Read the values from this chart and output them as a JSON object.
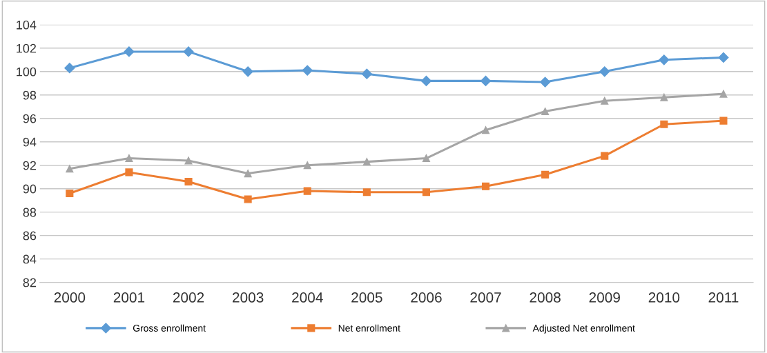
{
  "chart_data": {
    "type": "line",
    "categories": [
      "2000",
      "2001",
      "2002",
      "2003",
      "2004",
      "2005",
      "2006",
      "2007",
      "2008",
      "2009",
      "2010",
      "2011"
    ],
    "series": [
      {
        "name": "Gross enrollment",
        "color": "#5b9bd5",
        "marker": "diamond",
        "values": [
          100.3,
          101.7,
          101.7,
          100.0,
          100.1,
          99.8,
          99.2,
          99.2,
          99.1,
          100.0,
          101.0,
          101.2
        ]
      },
      {
        "name": "Net enrollment",
        "color": "#ed7d31",
        "marker": "square",
        "values": [
          89.6,
          91.4,
          90.6,
          89.1,
          89.8,
          89.7,
          89.7,
          90.2,
          91.2,
          92.8,
          95.5,
          95.8
        ]
      },
      {
        "name": "Adjusted Net enrollment",
        "color": "#a5a5a5",
        "marker": "triangle",
        "values": [
          91.7,
          92.6,
          92.4,
          91.3,
          92.0,
          92.3,
          92.6,
          95.0,
          96.6,
          97.5,
          97.8,
          98.1
        ]
      }
    ],
    "ylim": [
      82,
      104
    ],
    "yticks": [
      82,
      84,
      86,
      88,
      90,
      92,
      94,
      96,
      98,
      100,
      102,
      104
    ],
    "grid": "y",
    "legend": "bottom",
    "line_style": "solid"
  }
}
